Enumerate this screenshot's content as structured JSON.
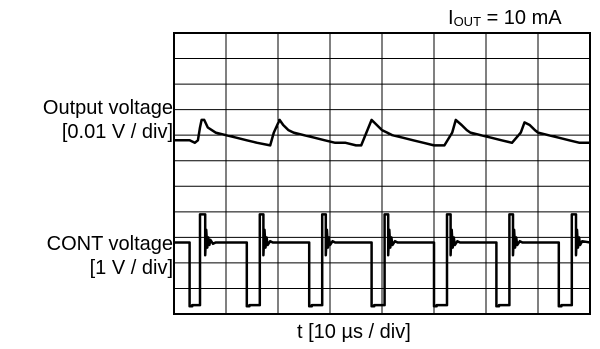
{
  "condition": {
    "prefix": "I",
    "subscript": "OUT",
    "rest": " = 10 mA"
  },
  "channels": [
    {
      "name": "Output voltage",
      "scale": "[0.01 V / div]"
    },
    {
      "name": "CONT voltage",
      "scale": "[1 V / div]"
    }
  ],
  "time_axis": "t [10 µs / div]",
  "chart_data": {
    "type": "line",
    "title": "",
    "annotation": "IOUT = 10 mA",
    "xlabel": "t [10 µs / div]",
    "xlim": [
      0,
      80
    ],
    "ylim": [
      0,
      11
    ],
    "grid": true,
    "grid_divisions": {
      "x": 8,
      "y": 11
    },
    "series": [
      {
        "name": "Output voltage",
        "scale": "[0.01 V / div]",
        "x": [
          0,
          3,
          4,
          4.6,
          5,
          5.3,
          5.8,
          6.5,
          8,
          10,
          12,
          14,
          16,
          18.5,
          19.2,
          20.3,
          21,
          22,
          23,
          25,
          27,
          29,
          31,
          33,
          35,
          36,
          37,
          38,
          39,
          40,
          41,
          42,
          44,
          46,
          48,
          50,
          52,
          53.5,
          54.2,
          55.3,
          56.3,
          57,
          59,
          61,
          63,
          65,
          66.7,
          67.4,
          68.4,
          69.4,
          70,
          72,
          74,
          76,
          78,
          80
        ],
        "y": [
          6.8,
          6.8,
          6.7,
          6.8,
          7.3,
          7.6,
          7.6,
          7.3,
          7.1,
          7.0,
          6.9,
          6.8,
          6.7,
          6.6,
          7.1,
          7.6,
          7.4,
          7.2,
          7.1,
          7.0,
          6.9,
          6.8,
          6.7,
          6.7,
          6.6,
          6.6,
          7.1,
          7.6,
          7.4,
          7.2,
          7.1,
          7.0,
          6.9,
          6.8,
          6.7,
          6.6,
          6.6,
          7.1,
          7.6,
          7.4,
          7.2,
          7.1,
          7.0,
          6.9,
          6.8,
          6.7,
          7.1,
          7.5,
          7.4,
          7.2,
          7.1,
          7.0,
          6.9,
          6.8,
          6.7,
          6.7
        ]
      },
      {
        "name": "CONT voltage",
        "scale": "[1 V / div]",
        "x": [
          0,
          3,
          3,
          3.5,
          3.5,
          5,
          5,
          6,
          6,
          6.2,
          6.4,
          6.6,
          6.8,
          7,
          7.5,
          8,
          10,
          12,
          14,
          14,
          14.5,
          14.5,
          16.5,
          16.5,
          17.2,
          17.2,
          17.4,
          17.6,
          17.8,
          18,
          18.5,
          19,
          21,
          23,
          26,
          26,
          26.5,
          26.5,
          28.5,
          28.5,
          29.2,
          29.2,
          29.4,
          29.6,
          29.8,
          30,
          30.5,
          31,
          33,
          35,
          38,
          38,
          38.5,
          38.5,
          40.5,
          40.5,
          41.2,
          41.2,
          41.4,
          41.6,
          41.8,
          42,
          42.5,
          43,
          45,
          47,
          50,
          50,
          50.5,
          50.5,
          52.5,
          52.5,
          53.2,
          53.2,
          53.4,
          53.6,
          53.8,
          54,
          54.5,
          55,
          57,
          59,
          62,
          62,
          62.5,
          62.5,
          64.5,
          64.5,
          65.2,
          65.2,
          65.4,
          65.6,
          65.8,
          66,
          66.5,
          67,
          69,
          71,
          74,
          74,
          74.5,
          74.5,
          76.5,
          76.5,
          77.3,
          77.3,
          77.5,
          77.7,
          77.9,
          78.1,
          78.5,
          80
        ],
        "y": [
          2.8,
          2.8,
          0.3,
          0.3,
          0.35,
          0.35,
          3.9,
          3.9,
          2.3,
          3.3,
          2.6,
          3.0,
          2.7,
          2.9,
          2.75,
          2.8,
          2.8,
          2.8,
          2.8,
          0.3,
          0.3,
          0.35,
          0.35,
          3.9,
          3.9,
          2.3,
          3.3,
          2.6,
          3.0,
          2.7,
          2.85,
          2.8,
          2.8,
          2.8,
          2.8,
          0.3,
          0.3,
          0.35,
          0.35,
          3.9,
          3.9,
          2.3,
          3.3,
          2.6,
          3.0,
          2.7,
          2.85,
          2.8,
          2.8,
          2.8,
          2.8,
          0.3,
          0.3,
          0.35,
          0.35,
          3.9,
          3.9,
          2.3,
          3.3,
          2.6,
          3.0,
          2.7,
          2.85,
          2.8,
          2.8,
          2.8,
          2.8,
          0.3,
          0.3,
          0.35,
          0.35,
          3.9,
          3.9,
          2.3,
          3.3,
          2.6,
          3.0,
          2.7,
          2.85,
          2.8,
          2.8,
          2.8,
          2.8,
          0.3,
          0.3,
          0.35,
          0.35,
          3.9,
          3.9,
          2.3,
          3.3,
          2.6,
          3.0,
          2.7,
          2.85,
          2.8,
          2.8,
          2.8,
          2.8,
          0.3,
          0.3,
          0.35,
          0.35,
          3.9,
          3.9,
          2.3,
          3.3,
          2.6,
          3.0,
          2.7,
          2.85,
          2.8
        ]
      }
    ]
  }
}
